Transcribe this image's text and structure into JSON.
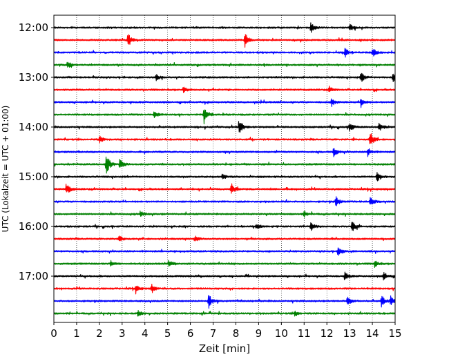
{
  "chart_data": {
    "type": "line",
    "title": "",
    "xlabel": "Zeit  [min]",
    "ylabel": "UTC (Lokalzeit = UTC + 01:00)",
    "xlim": [
      0,
      15
    ],
    "x_ticks": [
      "0",
      "1",
      "2",
      "3",
      "4",
      "5",
      "6",
      "7",
      "8",
      "9",
      "10",
      "11",
      "12",
      "13",
      "14",
      "15"
    ],
    "y_ticks": [
      "12:00",
      "13:00",
      "14:00",
      "15:00",
      "16:00",
      "17:00"
    ],
    "grid": "vertical dotted",
    "trace_colors": [
      "#000000",
      "#ff0000",
      "#0000ff",
      "#008000"
    ],
    "traces": [
      {
        "start": "12:00",
        "events": [
          [
            11.3,
            7
          ],
          [
            13.0,
            6
          ]
        ]
      },
      {
        "start": "12:15",
        "events": [
          [
            3.25,
            11
          ],
          [
            8.4,
            11
          ]
        ]
      },
      {
        "start": "12:30",
        "events": [
          [
            12.8,
            6
          ],
          [
            14.0,
            7
          ]
        ]
      },
      {
        "start": "12:45",
        "events": [
          [
            0.6,
            5
          ]
        ]
      },
      {
        "start": "13:00",
        "events": [
          [
            13.5,
            8
          ],
          [
            14.9,
            8
          ],
          [
            4.5,
            4
          ]
        ]
      },
      {
        "start": "13:15",
        "events": [
          [
            5.7,
            4
          ],
          [
            12.1,
            4
          ]
        ]
      },
      {
        "start": "13:30",
        "events": [
          [
            12.2,
            6
          ],
          [
            13.5,
            7
          ]
        ]
      },
      {
        "start": "13:45",
        "events": [
          [
            6.6,
            14
          ],
          [
            4.4,
            5
          ]
        ]
      },
      {
        "start": "14:00",
        "events": [
          [
            8.15,
            12
          ],
          [
            13.0,
            7
          ],
          [
            14.3,
            7
          ]
        ]
      },
      {
        "start": "14:15",
        "events": [
          [
            13.9,
            12
          ],
          [
            2.0,
            5
          ]
        ]
      },
      {
        "start": "14:30",
        "events": [
          [
            12.3,
            7
          ],
          [
            13.8,
            6
          ]
        ]
      },
      {
        "start": "14:45",
        "events": [
          [
            2.3,
            16
          ],
          [
            2.9,
            8
          ]
        ]
      },
      {
        "start": "15:00",
        "events": [
          [
            14.2,
            8
          ],
          [
            7.4,
            4
          ]
        ]
      },
      {
        "start": "15:15",
        "events": [
          [
            0.55,
            9
          ],
          [
            7.8,
            9
          ]
        ]
      },
      {
        "start": "15:30",
        "events": [
          [
            12.4,
            7
          ],
          [
            13.9,
            7
          ]
        ]
      },
      {
        "start": "15:45",
        "events": [
          [
            3.8,
            4
          ],
          [
            11.0,
            4
          ]
        ]
      },
      {
        "start": "16:00",
        "events": [
          [
            11.3,
            7
          ],
          [
            13.1,
            8
          ],
          [
            8.9,
            4
          ]
        ]
      },
      {
        "start": "16:15",
        "events": [
          [
            2.9,
            4
          ],
          [
            6.2,
            4
          ]
        ]
      },
      {
        "start": "16:30",
        "events": [
          [
            12.5,
            8
          ]
        ]
      },
      {
        "start": "16:45",
        "events": [
          [
            5.05,
            6
          ],
          [
            14.1,
            5
          ],
          [
            2.5,
            4
          ]
        ]
      },
      {
        "start": "17:00",
        "events": [
          [
            12.8,
            6
          ],
          [
            14.5,
            7
          ]
        ]
      },
      {
        "start": "17:15",
        "events": [
          [
            4.3,
            6
          ],
          [
            3.6,
            5
          ]
        ]
      },
      {
        "start": "17:30",
        "events": [
          [
            6.8,
            11
          ],
          [
            12.9,
            7
          ],
          [
            14.4,
            9
          ],
          [
            14.8,
            7
          ]
        ]
      },
      {
        "start": "17:45",
        "events": [
          [
            3.7,
            4
          ],
          [
            10.6,
            4
          ]
        ]
      }
    ]
  }
}
